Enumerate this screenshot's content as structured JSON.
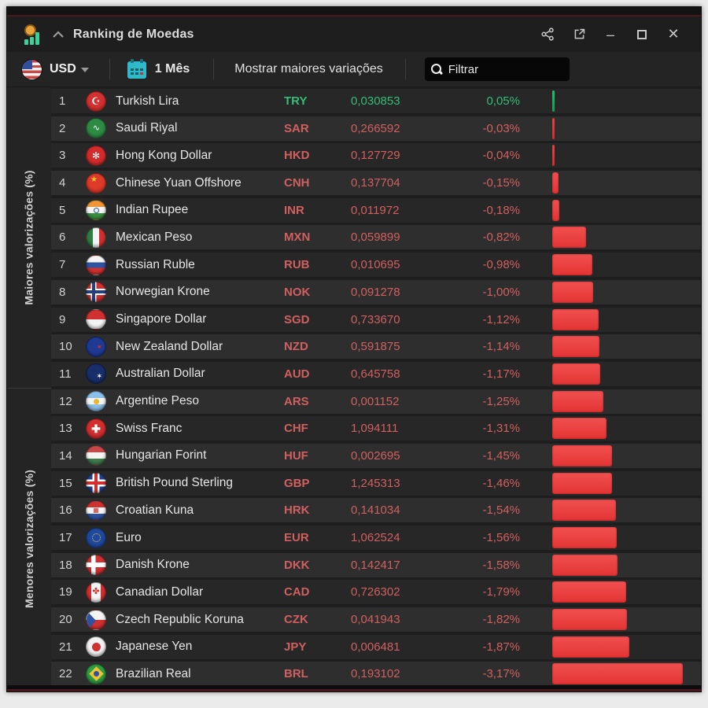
{
  "window": {
    "title": "Ranking de Moedas",
    "titlebar_icons": [
      "app-logo-coin-chart",
      "collapse-chevron",
      "share",
      "open-in-new",
      "minimize",
      "maximize",
      "close"
    ],
    "minimize_glyph": "–",
    "close_glyph": "✕"
  },
  "toolbar": {
    "currency_selector": "USD",
    "currency_flag": "us-flag",
    "period_icon": "calendar-icon",
    "period": "1 Mês",
    "show_variations_label": "Mostrar maiores variações",
    "filter_icon": "search-icon",
    "filter_placeholder": "Filtrar"
  },
  "sections": {
    "top_label": "Maiores valorizações (%)",
    "bottom_label": "Menores valorizações (%)"
  },
  "colors": {
    "positive_text": "#35bd76",
    "negative_text": "#d06060",
    "positive_bar": "#1fa95f",
    "negative_bar": "#e83b3b",
    "accent_maroon": "#4a191d"
  },
  "chart": {
    "max_abs_pct": 3.17,
    "bar_max_width": 166,
    "min_bar_width": 3
  },
  "flag_glyphs": {
    "tr": "☪",
    "sa": "∿",
    "hk": "✻",
    "cn": "★",
    "nz": "✶",
    "au": "✶",
    "ch": "✚",
    "hr": "▦",
    "ca": "✤"
  },
  "rows": [
    {
      "rank": "1",
      "name": "Turkish Lira",
      "code": "TRY",
      "value": "0,030853",
      "pct": "0,05%",
      "pct_value": 0.05,
      "direction": "up",
      "flag": "tr"
    },
    {
      "rank": "2",
      "name": "Saudi Riyal",
      "code": "SAR",
      "value": "0,266592",
      "pct": "-0,03%",
      "pct_value": -0.03,
      "direction": "down",
      "flag": "sa"
    },
    {
      "rank": "3",
      "name": "Hong Kong Dollar",
      "code": "HKD",
      "value": "0,127729",
      "pct": "-0,04%",
      "pct_value": -0.04,
      "direction": "down",
      "flag": "hk"
    },
    {
      "rank": "4",
      "name": "Chinese Yuan Offshore",
      "code": "CNH",
      "value": "0,137704",
      "pct": "-0,15%",
      "pct_value": -0.15,
      "direction": "down",
      "flag": "cn"
    },
    {
      "rank": "5",
      "name": "Indian Rupee",
      "code": "INR",
      "value": "0,011972",
      "pct": "-0,18%",
      "pct_value": -0.18,
      "direction": "down",
      "flag": "in"
    },
    {
      "rank": "6",
      "name": "Mexican Peso",
      "code": "MXN",
      "value": "0,059899",
      "pct": "-0,82%",
      "pct_value": -0.82,
      "direction": "down",
      "flag": "mx"
    },
    {
      "rank": "7",
      "name": "Russian Ruble",
      "code": "RUB",
      "value": "0,010695",
      "pct": "-0,98%",
      "pct_value": -0.98,
      "direction": "down",
      "flag": "ru"
    },
    {
      "rank": "8",
      "name": "Norwegian Krone",
      "code": "NOK",
      "value": "0,091278",
      "pct": "-1,00%",
      "pct_value": -1.0,
      "direction": "down",
      "flag": "no"
    },
    {
      "rank": "9",
      "name": "Singapore Dollar",
      "code": "SGD",
      "value": "0,733670",
      "pct": "-1,12%",
      "pct_value": -1.12,
      "direction": "down",
      "flag": "sg"
    },
    {
      "rank": "10",
      "name": "New Zealand Dollar",
      "code": "NZD",
      "value": "0,591875",
      "pct": "-1,14%",
      "pct_value": -1.14,
      "direction": "down",
      "flag": "nz"
    },
    {
      "rank": "11",
      "name": "Australian Dollar",
      "code": "AUD",
      "value": "0,645758",
      "pct": "-1,17%",
      "pct_value": -1.17,
      "direction": "down",
      "flag": "au"
    },
    {
      "rank": "12",
      "name": "Argentine Peso",
      "code": "ARS",
      "value": "0,001152",
      "pct": "-1,25%",
      "pct_value": -1.25,
      "direction": "down",
      "flag": "ar"
    },
    {
      "rank": "13",
      "name": "Swiss Franc",
      "code": "CHF",
      "value": "1,094111",
      "pct": "-1,31%",
      "pct_value": -1.31,
      "direction": "down",
      "flag": "ch"
    },
    {
      "rank": "14",
      "name": "Hungarian Forint",
      "code": "HUF",
      "value": "0,002695",
      "pct": "-1,45%",
      "pct_value": -1.45,
      "direction": "down",
      "flag": "hu"
    },
    {
      "rank": "15",
      "name": "British Pound Sterling",
      "code": "GBP",
      "value": "1,245313",
      "pct": "-1,46%",
      "pct_value": -1.46,
      "direction": "down",
      "flag": "gb"
    },
    {
      "rank": "16",
      "name": "Croatian Kuna",
      "code": "HRK",
      "value": "0,141034",
      "pct": "-1,54%",
      "pct_value": -1.54,
      "direction": "down",
      "flag": "hr"
    },
    {
      "rank": "17",
      "name": "Euro",
      "code": "EUR",
      "value": "1,062524",
      "pct": "-1,56%",
      "pct_value": -1.56,
      "direction": "down",
      "flag": "eu"
    },
    {
      "rank": "18",
      "name": "Danish Krone",
      "code": "DKK",
      "value": "0,142417",
      "pct": "-1,58%",
      "pct_value": -1.58,
      "direction": "down",
      "flag": "dk"
    },
    {
      "rank": "19",
      "name": "Canadian Dollar",
      "code": "CAD",
      "value": "0,726302",
      "pct": "-1,79%",
      "pct_value": -1.79,
      "direction": "down",
      "flag": "ca"
    },
    {
      "rank": "20",
      "name": "Czech Republic Koruna",
      "code": "CZK",
      "value": "0,041943",
      "pct": "-1,82%",
      "pct_value": -1.82,
      "direction": "down",
      "flag": "cz"
    },
    {
      "rank": "21",
      "name": "Japanese Yen",
      "code": "JPY",
      "value": "0,006481",
      "pct": "-1,87%",
      "pct_value": -1.87,
      "direction": "down",
      "flag": "jp"
    },
    {
      "rank": "22",
      "name": "Brazilian Real",
      "code": "BRL",
      "value": "0,193102",
      "pct": "-3,17%",
      "pct_value": -3.17,
      "direction": "down",
      "flag": "br"
    }
  ]
}
